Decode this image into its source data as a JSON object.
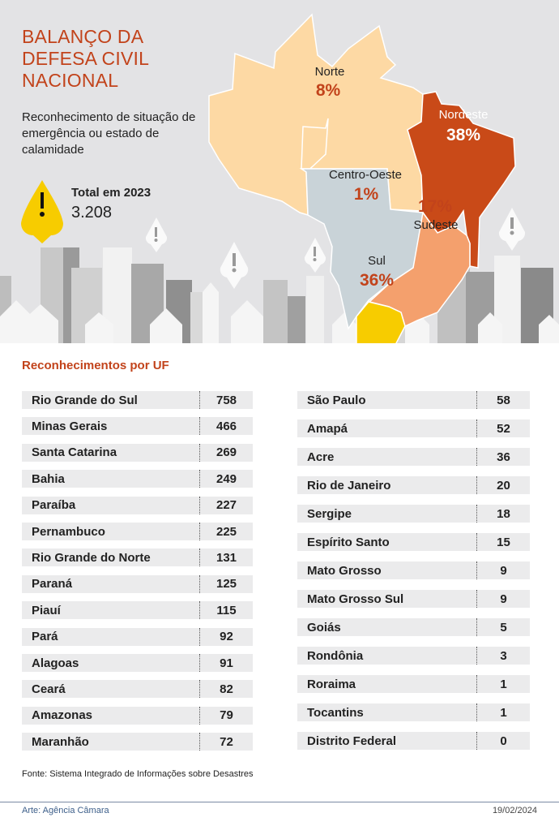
{
  "header": {
    "title_lines": [
      "BALANÇO DA",
      "DEFESA CIVIL",
      "NACIONAL"
    ],
    "subtitle": "Reconhecimento de situação de emergência ou estado de calamidade",
    "total_label": "Total em 2023",
    "total_value": "3.208",
    "icon": "warning-icon"
  },
  "map": {
    "regions": [
      {
        "name": "Norte",
        "percent": "8%",
        "color": "#fdd9a4"
      },
      {
        "name": "Nordeste",
        "percent": "38%",
        "color": "#c94a18"
      },
      {
        "name": "Centro-Oeste",
        "percent": "1%",
        "color": "#c9d3d8"
      },
      {
        "name": "Sudeste",
        "percent": "17%",
        "color": "#f4a06d"
      },
      {
        "name": "Sul",
        "percent": "36%",
        "color": "#f7cc00"
      }
    ]
  },
  "table": {
    "title": "Reconhecimentos por UF",
    "left": [
      {
        "uf": "Rio Grande do Sul",
        "value": "758"
      },
      {
        "uf": "Minas Gerais",
        "value": "466"
      },
      {
        "uf": "Santa Catarina",
        "value": "269"
      },
      {
        "uf": "Bahia",
        "value": "249"
      },
      {
        "uf": "Paraíba",
        "value": "227"
      },
      {
        "uf": "Pernambuco",
        "value": "225"
      },
      {
        "uf": "Rio Grande do Norte",
        "value": "131"
      },
      {
        "uf": "Paraná",
        "value": "125"
      },
      {
        "uf": "Piauí",
        "value": "115"
      },
      {
        "uf": "Pará",
        "value": "92"
      },
      {
        "uf": "Alagoas",
        "value": "91"
      },
      {
        "uf": "Ceará",
        "value": "82"
      },
      {
        "uf": "Amazonas",
        "value": "79"
      },
      {
        "uf": "Maranhão",
        "value": "72"
      }
    ],
    "right": [
      {
        "uf": "São Paulo",
        "value": "58"
      },
      {
        "uf": "Amapá",
        "value": "52"
      },
      {
        "uf": "Acre",
        "value": "36"
      },
      {
        "uf": "Rio de Janeiro",
        "value": "20"
      },
      {
        "uf": "Sergipe",
        "value": "18"
      },
      {
        "uf": "Espírito Santo",
        "value": "15"
      },
      {
        "uf": "Mato Grosso",
        "value": "9"
      },
      {
        "uf": "Mato Grosso Sul",
        "value": "9"
      },
      {
        "uf": "Goiás",
        "value": "5"
      },
      {
        "uf": "Rondônia",
        "value": "3"
      },
      {
        "uf": "Roraima",
        "value": "1"
      },
      {
        "uf": "Tocantins",
        "value": "1"
      },
      {
        "uf": "Distrito Federal",
        "value": "0"
      }
    ]
  },
  "footer": {
    "source": "Fonte: Sistema Integrado de Informações sobre Desastres",
    "credit": "Arte: Agência Câmara",
    "date": "19/02/2024"
  },
  "colors": {
    "accent": "#c2431b",
    "background": "#e3e3e5",
    "row": "#ebebec"
  }
}
